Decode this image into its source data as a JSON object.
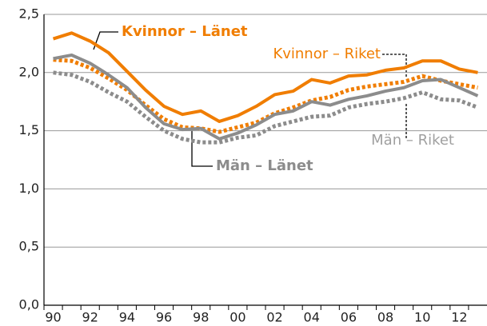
{
  "chart_data": {
    "type": "line",
    "categories": [
      "90",
      null,
      "92",
      null,
      "94",
      null,
      "96",
      null,
      "98",
      null,
      "00",
      null,
      "02",
      null,
      "04",
      null,
      "06",
      null,
      "08",
      null,
      "10",
      null,
      "12",
      null
    ],
    "series": [
      {
        "name": "Kvinnor – Länet",
        "color": "#f07d00",
        "dashed": false,
        "values": [
          2.29,
          2.34,
          2.27,
          2.17,
          2.01,
          1.85,
          1.71,
          1.64,
          1.67,
          1.58,
          1.63,
          1.71,
          1.81,
          1.84,
          1.94,
          1.91,
          1.97,
          1.98,
          2.02,
          2.04,
          2.1,
          2.1,
          2.03,
          2.0
        ]
      },
      {
        "name": "Kvinnor – Riket",
        "color": "#f07d00",
        "dashed": true,
        "values": [
          2.11,
          2.1,
          2.04,
          1.95,
          1.85,
          1.72,
          1.6,
          1.53,
          1.52,
          1.49,
          1.53,
          1.57,
          1.65,
          1.7,
          1.76,
          1.79,
          1.85,
          1.88,
          1.9,
          1.92,
          1.97,
          1.93,
          1.9,
          1.87
        ]
      },
      {
        "name": "Män – Länet",
        "color": "#8c8c8c",
        "dashed": false,
        "values": [
          2.12,
          2.15,
          2.08,
          1.98,
          1.87,
          1.7,
          1.56,
          1.51,
          1.52,
          1.43,
          1.48,
          1.55,
          1.64,
          1.67,
          1.75,
          1.72,
          1.77,
          1.8,
          1.84,
          1.87,
          1.93,
          1.94,
          1.87,
          1.8
        ]
      },
      {
        "name": "Män – Riket",
        "color": "#8c8c8c",
        "dashed": true,
        "values": [
          2.0,
          1.98,
          1.92,
          1.83,
          1.75,
          1.62,
          1.5,
          1.43,
          1.4,
          1.4,
          1.44,
          1.46,
          1.54,
          1.58,
          1.62,
          1.63,
          1.7,
          1.73,
          1.75,
          1.78,
          1.83,
          1.77,
          1.76,
          1.7
        ]
      }
    ],
    "ylim": [
      0,
      2.5
    ],
    "yticks": [
      {
        "value": 0,
        "label": "0,0"
      },
      {
        "value": 0.5,
        "label": "0,5"
      },
      {
        "value": 1,
        "label": "1,0"
      },
      {
        "value": 1.5,
        "label": "1,5"
      },
      {
        "value": 2,
        "label": "2,0"
      },
      {
        "value": 2.5,
        "label": "2,5"
      }
    ],
    "grid": true
  }
}
